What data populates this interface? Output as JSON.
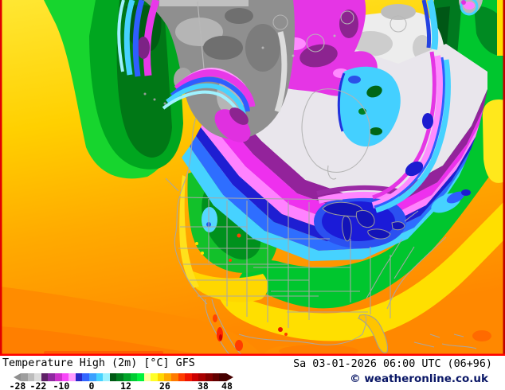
{
  "footer": {
    "title": "Temperature High (2m) [°C] GFS",
    "valid_time": "Sa 03-01-2026 06:00 UTC (06+96)",
    "copyright": "© weatheronline.co.uk"
  },
  "colorbar": {
    "unit": "°C",
    "tick_labels": [
      "-28",
      "-22",
      "-10",
      "0",
      "12",
      "26",
      "38",
      "48"
    ],
    "tick_positions_pct": [
      1.8,
      11.2,
      21.7,
      35.5,
      51.1,
      68.8,
      86.2,
      97.1
    ],
    "cell_colors": [
      "#9e9e9e",
      "#bcbcbc",
      "#dcdcdc",
      "#5e2066",
      "#8f28a0",
      "#cc30cc",
      "#f846f8",
      "#ff9cff",
      "#2828c8",
      "#3366ff",
      "#3ba0ff",
      "#46d2ff",
      "#9cf2ff",
      "#005a14",
      "#007d1d",
      "#00a528",
      "#00cc33",
      "#00f23d",
      "#ffff9e",
      "#ffff28",
      "#ffd700",
      "#ffaa00",
      "#ff7b00",
      "#ff3d00",
      "#f01400",
      "#cc0000",
      "#a80000",
      "#840000",
      "#620000",
      "#460000"
    ],
    "left_arrow_color": "#8f8f8f",
    "right_arrow_color": "#450000"
  },
  "map": {
    "palette": {
      "warm_ocean": "#ffaa00",
      "deep_orange": "#ff7f00",
      "yellow_band": "#ffdf00",
      "green_mild": "#17d52e",
      "dark_green": "#00791f",
      "cyan_cold": "#46d2ff",
      "blue_cold": "#2e6eff",
      "deep_blue": "#1e1ed2",
      "pink": "#ff82ff",
      "magenta": "#ee30ee",
      "purple": "#93239b",
      "arctic_white": "#ededed",
      "land_gray": "#8f8f8f",
      "hot_red": "#ff2800",
      "frame_red": "#e00000",
      "coastline_gray": "#a8a8a8"
    }
  }
}
